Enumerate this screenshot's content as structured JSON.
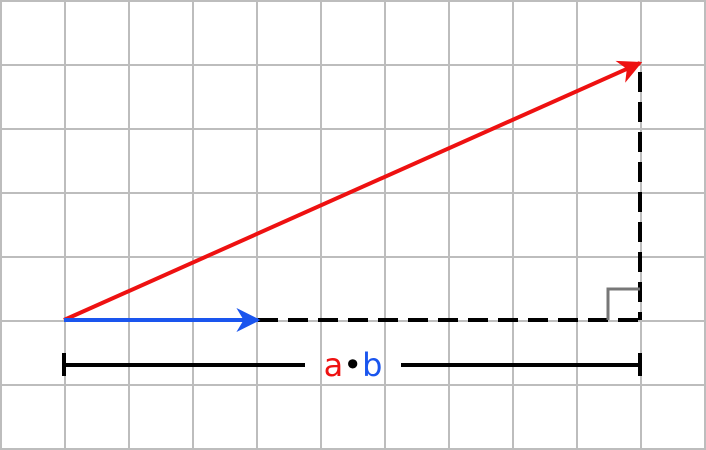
{
  "colors": {
    "vector_a": "#ee1111",
    "vector_b": "#1a55ee",
    "grid": "#bdbdbd",
    "dashes": "#000000",
    "right_angle_marker": "#777777"
  },
  "label": {
    "a": "a",
    "dot": "•",
    "b": "b"
  }
}
